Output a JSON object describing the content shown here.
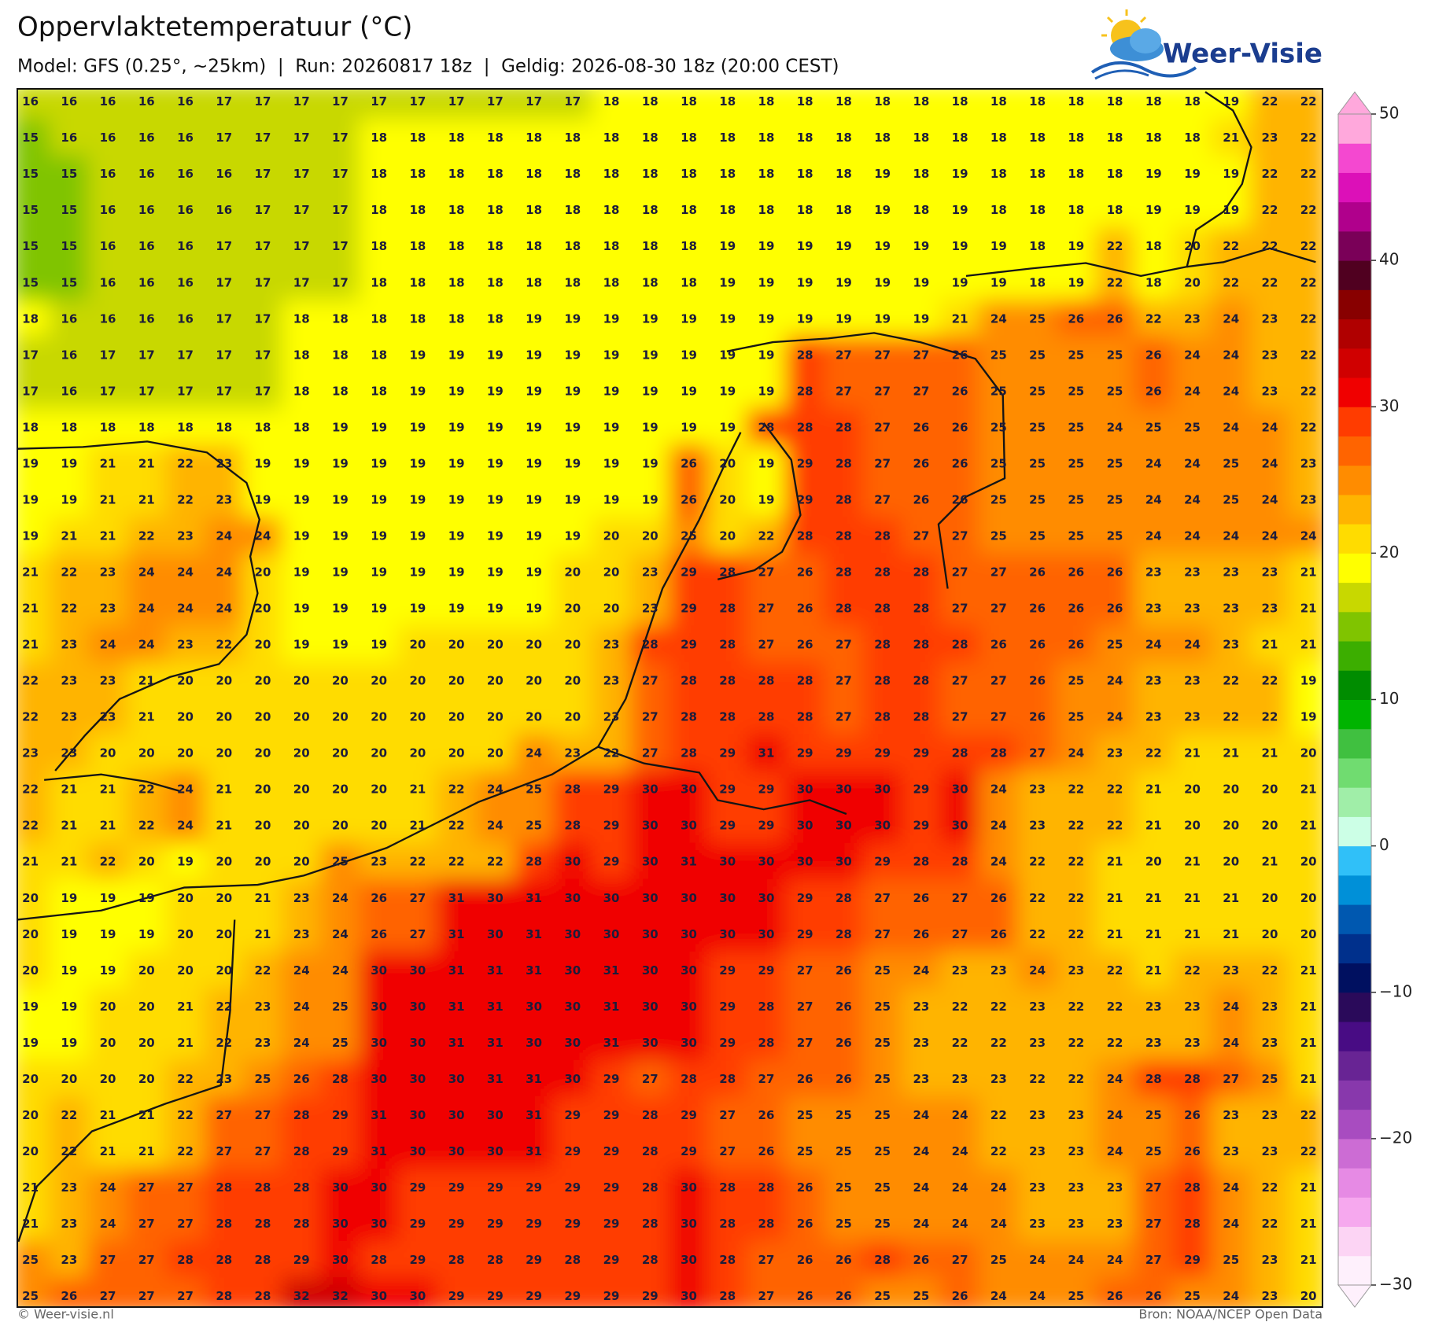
{
  "header": {
    "title": "Oppervlaktetemperatuur (°C)",
    "subtitle": "Model: GFS (0.25°, ~25km)  |  Run: 20260817 18z  |  Geldig: 2026-08-30 18z (20:00 CEST)"
  },
  "logo": {
    "text": "Weer-Visie"
  },
  "grid": {
    "rows": [
      [
        16,
        16,
        16,
        16,
        16,
        17,
        17,
        17,
        17,
        17,
        17,
        17,
        17,
        17,
        17,
        18,
        18,
        18,
        18,
        18,
        18,
        18,
        18,
        18,
        18,
        18,
        18,
        18,
        18,
        18,
        18,
        19,
        22,
        22
      ],
      [
        15,
        16,
        16,
        16,
        16,
        17,
        17,
        17,
        17,
        18,
        18,
        18,
        18,
        18,
        18,
        18,
        18,
        18,
        18,
        18,
        18,
        18,
        18,
        18,
        18,
        18,
        18,
        18,
        18,
        18,
        18,
        21,
        23,
        22
      ],
      [
        15,
        15,
        16,
        16,
        16,
        16,
        17,
        17,
        17,
        18,
        18,
        18,
        18,
        18,
        18,
        18,
        18,
        18,
        18,
        18,
        18,
        18,
        19,
        18,
        19,
        18,
        18,
        18,
        18,
        19,
        19,
        19,
        22,
        22
      ],
      [
        15,
        15,
        16,
        16,
        16,
        16,
        17,
        17,
        17,
        18,
        18,
        18,
        18,
        18,
        18,
        18,
        18,
        18,
        18,
        18,
        18,
        18,
        19,
        18,
        19,
        18,
        18,
        18,
        18,
        19,
        19,
        19,
        22,
        22
      ],
      [
        15,
        15,
        16,
        16,
        16,
        17,
        17,
        17,
        17,
        18,
        18,
        18,
        18,
        18,
        18,
        18,
        18,
        18,
        19,
        19,
        19,
        19,
        19,
        19,
        19,
        19,
        18,
        19,
        22,
        18,
        20,
        22,
        22,
        22
      ],
      [
        15,
        15,
        16,
        16,
        16,
        17,
        17,
        17,
        17,
        18,
        18,
        18,
        18,
        18,
        18,
        18,
        18,
        18,
        19,
        19,
        19,
        19,
        19,
        19,
        19,
        19,
        18,
        19,
        22,
        18,
        20,
        22,
        22,
        22
      ],
      [
        18,
        16,
        16,
        16,
        16,
        17,
        17,
        18,
        18,
        18,
        18,
        18,
        18,
        19,
        19,
        19,
        19,
        19,
        19,
        19,
        19,
        19,
        19,
        19,
        21,
        24,
        25,
        26,
        26,
        22,
        23,
        24,
        23,
        22
      ],
      [
        17,
        16,
        17,
        17,
        17,
        17,
        17,
        18,
        18,
        18,
        19,
        19,
        19,
        19,
        19,
        19,
        19,
        19,
        19,
        19,
        28,
        27,
        27,
        27,
        26,
        25,
        25,
        25,
        25,
        26,
        24,
        24,
        23,
        22
      ],
      [
        17,
        16,
        17,
        17,
        17,
        17,
        17,
        18,
        18,
        18,
        19,
        19,
        19,
        19,
        19,
        19,
        19,
        19,
        19,
        19,
        28,
        27,
        27,
        27,
        26,
        25,
        25,
        25,
        25,
        26,
        24,
        24,
        23,
        22
      ],
      [
        18,
        18,
        18,
        18,
        18,
        18,
        18,
        18,
        19,
        19,
        19,
        19,
        19,
        19,
        19,
        19,
        19,
        19,
        19,
        28,
        28,
        28,
        27,
        26,
        26,
        25,
        25,
        25,
        24,
        25,
        25,
        24,
        24,
        22
      ],
      [
        19,
        19,
        21,
        21,
        22,
        23,
        19,
        19,
        19,
        19,
        19,
        19,
        19,
        19,
        19,
        19,
        19,
        26,
        20,
        19,
        29,
        28,
        27,
        26,
        26,
        25,
        25,
        25,
        25,
        24,
        24,
        25,
        24,
        23
      ],
      [
        19,
        19,
        21,
        21,
        22,
        23,
        19,
        19,
        19,
        19,
        19,
        19,
        19,
        19,
        19,
        19,
        19,
        26,
        20,
        19,
        29,
        28,
        27,
        26,
        26,
        25,
        25,
        25,
        25,
        24,
        24,
        25,
        24,
        23
      ],
      [
        19,
        21,
        21,
        22,
        23,
        24,
        24,
        19,
        19,
        19,
        19,
        19,
        19,
        19,
        19,
        20,
        20,
        25,
        20,
        22,
        28,
        28,
        28,
        27,
        27,
        25,
        25,
        25,
        25,
        24,
        24,
        24,
        24,
        24
      ],
      [
        21,
        22,
        23,
        24,
        24,
        24,
        20,
        19,
        19,
        19,
        19,
        19,
        19,
        19,
        20,
        20,
        23,
        29,
        28,
        27,
        26,
        28,
        28,
        28,
        27,
        27,
        26,
        26,
        26,
        23,
        23,
        23,
        23,
        21
      ],
      [
        21,
        22,
        23,
        24,
        24,
        24,
        20,
        19,
        19,
        19,
        19,
        19,
        19,
        19,
        20,
        20,
        23,
        29,
        28,
        27,
        26,
        28,
        28,
        28,
        27,
        27,
        26,
        26,
        26,
        23,
        23,
        23,
        23,
        21
      ],
      [
        21,
        23,
        24,
        24,
        23,
        22,
        20,
        19,
        19,
        19,
        20,
        20,
        20,
        20,
        20,
        23,
        28,
        29,
        28,
        27,
        26,
        27,
        28,
        28,
        28,
        26,
        26,
        26,
        25,
        24,
        24,
        23,
        21,
        21
      ],
      [
        22,
        23,
        23,
        21,
        20,
        20,
        20,
        20,
        20,
        20,
        20,
        20,
        20,
        20,
        20,
        23,
        27,
        28,
        28,
        28,
        28,
        27,
        28,
        28,
        27,
        27,
        26,
        25,
        24,
        23,
        23,
        22,
        22,
        19
      ],
      [
        22,
        23,
        23,
        21,
        20,
        20,
        20,
        20,
        20,
        20,
        20,
        20,
        20,
        20,
        20,
        23,
        27,
        28,
        28,
        28,
        28,
        27,
        28,
        28,
        27,
        27,
        26,
        25,
        24,
        23,
        23,
        22,
        22,
        19
      ],
      [
        23,
        23,
        20,
        20,
        20,
        20,
        20,
        20,
        20,
        20,
        20,
        20,
        20,
        24,
        23,
        22,
        27,
        28,
        29,
        31,
        29,
        29,
        29,
        29,
        28,
        28,
        27,
        24,
        23,
        22,
        21,
        21,
        21,
        20
      ],
      [
        22,
        21,
        21,
        22,
        24,
        21,
        20,
        20,
        20,
        20,
        21,
        22,
        24,
        25,
        28,
        29,
        30,
        30,
        29,
        29,
        30,
        30,
        30,
        29,
        30,
        24,
        23,
        22,
        22,
        21,
        20,
        20,
        20,
        21
      ],
      [
        22,
        21,
        21,
        22,
        24,
        21,
        20,
        20,
        20,
        20,
        21,
        22,
        24,
        25,
        28,
        29,
        30,
        30,
        29,
        29,
        30,
        30,
        30,
        29,
        30,
        24,
        23,
        22,
        22,
        21,
        20,
        20,
        20,
        21
      ],
      [
        21,
        21,
        22,
        20,
        19,
        20,
        20,
        20,
        25,
        23,
        22,
        22,
        22,
        28,
        30,
        29,
        30,
        31,
        30,
        30,
        30,
        30,
        29,
        28,
        28,
        24,
        22,
        22,
        21,
        20,
        21,
        20,
        21,
        20
      ],
      [
        20,
        19,
        19,
        19,
        20,
        20,
        21,
        23,
        24,
        26,
        27,
        31,
        30,
        31,
        30,
        30,
        30,
        30,
        30,
        30,
        29,
        28,
        27,
        26,
        27,
        26,
        22,
        22,
        21,
        21,
        21,
        21,
        20,
        20
      ],
      [
        20,
        19,
        19,
        19,
        20,
        20,
        21,
        23,
        24,
        26,
        27,
        31,
        30,
        31,
        30,
        30,
        30,
        30,
        30,
        30,
        29,
        28,
        27,
        26,
        27,
        26,
        22,
        22,
        21,
        21,
        21,
        21,
        20,
        20
      ],
      [
        20,
        19,
        19,
        20,
        20,
        20,
        22,
        24,
        24,
        30,
        30,
        31,
        31,
        31,
        30,
        31,
        30,
        30,
        29,
        29,
        27,
        26,
        25,
        24,
        23,
        23,
        24,
        23,
        22,
        21,
        22,
        23,
        22,
        21
      ],
      [
        19,
        19,
        20,
        20,
        21,
        22,
        23,
        24,
        25,
        30,
        30,
        31,
        31,
        30,
        30,
        31,
        30,
        30,
        29,
        28,
        27,
        26,
        25,
        23,
        22,
        22,
        23,
        22,
        22,
        23,
        23,
        24,
        23,
        21
      ],
      [
        19,
        19,
        20,
        20,
        21,
        22,
        23,
        24,
        25,
        30,
        30,
        31,
        31,
        30,
        30,
        31,
        30,
        30,
        29,
        28,
        27,
        26,
        25,
        23,
        22,
        22,
        23,
        22,
        22,
        23,
        23,
        24,
        23,
        21
      ],
      [
        20,
        20,
        20,
        20,
        22,
        23,
        25,
        26,
        28,
        30,
        30,
        30,
        31,
        31,
        30,
        29,
        27,
        28,
        28,
        27,
        26,
        26,
        25,
        23,
        23,
        23,
        22,
        22,
        24,
        28,
        28,
        27,
        25,
        21
      ],
      [
        20,
        22,
        21,
        21,
        22,
        27,
        27,
        28,
        29,
        31,
        30,
        30,
        30,
        31,
        29,
        29,
        28,
        29,
        27,
        26,
        25,
        25,
        25,
        24,
        24,
        22,
        23,
        23,
        24,
        25,
        26,
        23,
        23,
        22
      ],
      [
        20,
        22,
        21,
        21,
        22,
        27,
        27,
        28,
        29,
        31,
        30,
        30,
        30,
        31,
        29,
        29,
        28,
        29,
        27,
        26,
        25,
        25,
        25,
        24,
        24,
        22,
        23,
        23,
        24,
        25,
        26,
        23,
        23,
        22
      ],
      [
        21,
        23,
        24,
        27,
        27,
        28,
        28,
        28,
        30,
        30,
        29,
        29,
        29,
        29,
        29,
        29,
        28,
        30,
        28,
        28,
        26,
        25,
        25,
        24,
        24,
        24,
        23,
        23,
        23,
        27,
        28,
        24,
        22,
        21
      ],
      [
        21,
        23,
        24,
        27,
        27,
        28,
        28,
        28,
        30,
        30,
        29,
        29,
        29,
        29,
        29,
        29,
        28,
        30,
        28,
        28,
        26,
        25,
        25,
        24,
        24,
        24,
        23,
        23,
        23,
        27,
        28,
        24,
        22,
        21
      ],
      [
        25,
        23,
        27,
        27,
        28,
        28,
        28,
        29,
        30,
        28,
        29,
        28,
        28,
        29,
        28,
        29,
        28,
        30,
        28,
        27,
        26,
        26,
        28,
        26,
        27,
        25,
        24,
        24,
        24,
        27,
        29,
        25,
        23,
        21
      ],
      [
        25,
        26,
        27,
        27,
        27,
        28,
        28,
        32,
        32,
        30,
        30,
        29,
        29,
        29,
        29,
        29,
        29,
        30,
        28,
        27,
        26,
        26,
        25,
        25,
        26,
        24,
        24,
        25,
        26,
        26,
        25,
        24,
        23,
        20
      ]
    ]
  },
  "colorbar": {
    "lim": [
      -30,
      50
    ],
    "ticks": [
      50,
      40,
      30,
      20,
      10,
      0,
      {
        "value": -10,
        "label": "−10"
      },
      {
        "value": -20,
        "label": "−20"
      },
      {
        "value": -30,
        "label": "−30"
      }
    ],
    "colors": [
      "#fef0fc",
      "#fcd4f4",
      "#f6a8ee",
      "#e68ae4",
      "#cc6cd4",
      "#a84cc0",
      "#8838ac",
      "#682494",
      "#480c84",
      "#2a0a5a",
      "#001060",
      "#00308c",
      "#0058b0",
      "#0090d8",
      "#30c0f8",
      "#ccffe6",
      "#a0eea8",
      "#70dc70",
      "#40c040",
      "#00b400",
      "#008c00",
      "#3cae00",
      "#80c400",
      "#c8d800",
      "#ffff00",
      "#ffdc00",
      "#ffb400",
      "#ff8c00",
      "#ff6400",
      "#ff3c00",
      "#f00000",
      "#d00000",
      "#b00000",
      "#880000",
      "#500020",
      "#7a0058",
      "#b0008c",
      "#dc10b8",
      "#f448d0",
      "#ffa8dc"
    ]
  },
  "footer": {
    "left": "© Weer-visie.nl",
    "right": "Bron: NOAA/NCEP Open Data"
  }
}
